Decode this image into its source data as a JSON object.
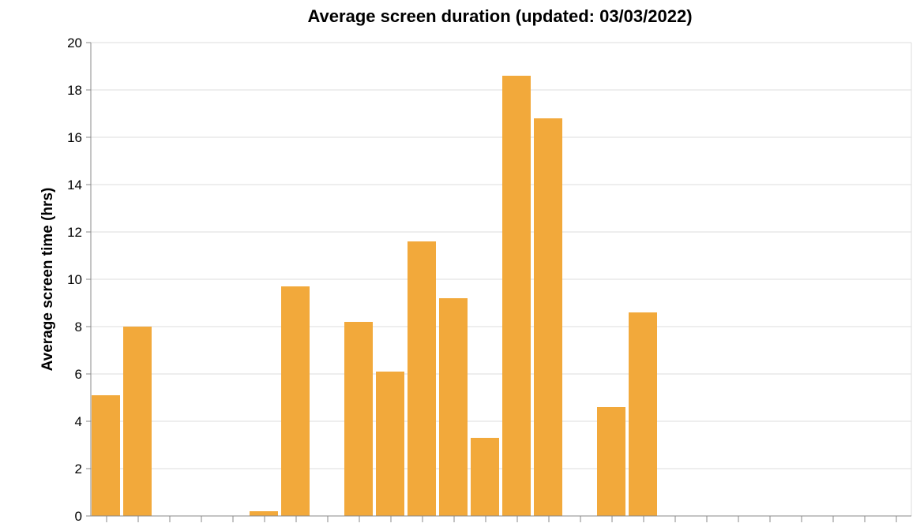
{
  "chart_data": {
    "type": "bar",
    "title": "Average screen duration (updated: 03/03/2022)",
    "xlabel": "",
    "ylabel": "Average screen time (hrs)",
    "ylim": [
      0,
      20
    ],
    "yticks": [
      0,
      2,
      4,
      6,
      8,
      10,
      12,
      14,
      16,
      18,
      20
    ],
    "grid": true,
    "bar_color": "#f2a93b",
    "values": [
      5.1,
      8.0,
      0,
      0,
      0,
      0.2,
      9.7,
      0,
      8.2,
      6.1,
      11.6,
      9.2,
      3.3,
      18.6,
      16.8,
      0,
      4.6,
      8.6,
      0,
      0,
      0,
      0,
      0,
      0,
      0,
      0
    ]
  }
}
